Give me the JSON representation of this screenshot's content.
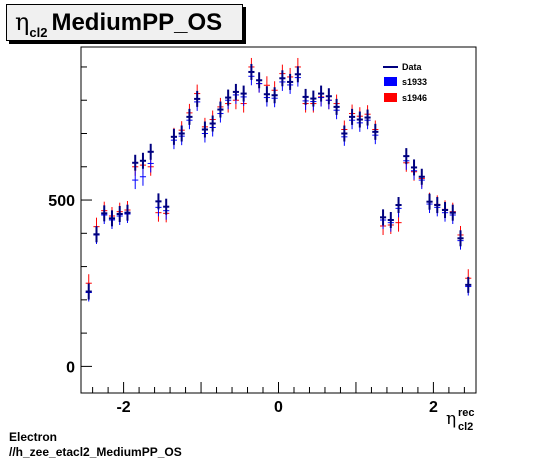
{
  "title": {
    "symbol": "η",
    "subscript": "cl2",
    "text": "MediumPP_OS"
  },
  "footer": {
    "line1": "Electron",
    "line2": "//h_zee_etacl2_MediumPP_OS"
  },
  "colors": {
    "data": "#00007f",
    "s1933": "#0000ff",
    "s1946": "#ff0000"
  },
  "chart_data": {
    "type": "scatter",
    "xlabel": {
      "symbol": "η",
      "superscript": "rec",
      "subscript": "cl2"
    },
    "ylabel": "",
    "xlim": [
      -2.55,
      2.55
    ],
    "ylim": [
      -80,
      960
    ],
    "xticks": [
      -2,
      0,
      2
    ],
    "yticks": [
      0,
      500
    ],
    "legend": {
      "position": "top-right",
      "entries": [
        "Data",
        "s1933",
        "s1946"
      ]
    },
    "x": [
      -2.45,
      -2.35,
      -2.25,
      -2.15,
      -2.05,
      -1.95,
      -1.85,
      -1.75,
      -1.65,
      -1.55,
      -1.45,
      -1.35,
      -1.25,
      -1.15,
      -1.05,
      -0.95,
      -0.85,
      -0.75,
      -0.65,
      -0.55,
      -0.45,
      -0.35,
      -0.25,
      -0.15,
      -0.05,
      0.05,
      0.15,
      0.25,
      0.35,
      0.45,
      0.55,
      0.65,
      0.75,
      0.85,
      0.95,
      1.05,
      1.15,
      1.25,
      1.35,
      1.45,
      1.55,
      1.65,
      1.75,
      1.85,
      1.95,
      2.05,
      2.15,
      2.25,
      2.35,
      2.45
    ],
    "series": [
      {
        "name": "Data",
        "values": [
          225,
          397,
          460,
          445,
          458,
          462,
          612,
          618,
          645,
          496,
          480,
          690,
          700,
          750,
          804,
          712,
          730,
          772,
          808,
          825,
          820,
          885,
          860,
          818,
          815,
          866,
          855,
          878,
          810,
          805,
          820,
          812,
          780,
          700,
          750,
          742,
          748,
          705,
          448,
          440,
          485,
          632,
          598,
          570,
          495,
          485,
          470,
          462,
          385,
          245
        ]
      },
      {
        "name": "s1933",
        "values": [
          222,
          395,
          455,
          440,
          452,
          458,
          560,
          570,
          610,
          478,
          468,
          680,
          692,
          740,
          795,
          700,
          718,
          760,
          800,
          816,
          810,
          872,
          850,
          808,
          806,
          855,
          846,
          868,
          798,
          796,
          808,
          800,
          770,
          690,
          740,
          732,
          740,
          695,
          440,
          432,
          475,
          618,
          588,
          560,
          488,
          478,
          462,
          455,
          378,
          240
        ]
      },
      {
        "name": "s1946",
        "values": [
          250,
          420,
          468,
          452,
          465,
          470,
          600,
          605,
          600,
          462,
          460,
          690,
          710,
          762,
          820,
          720,
          742,
          780,
          790,
          800,
          790,
          900,
          850,
          845,
          830,
          880,
          870,
          900,
          790,
          790,
          810,
          800,
          790,
          712,
          760,
          752,
          758,
          712,
          422,
          425,
          432,
          612,
          585,
          565,
          495,
          487,
          472,
          465,
          395,
          265
        ]
      }
    ]
  }
}
